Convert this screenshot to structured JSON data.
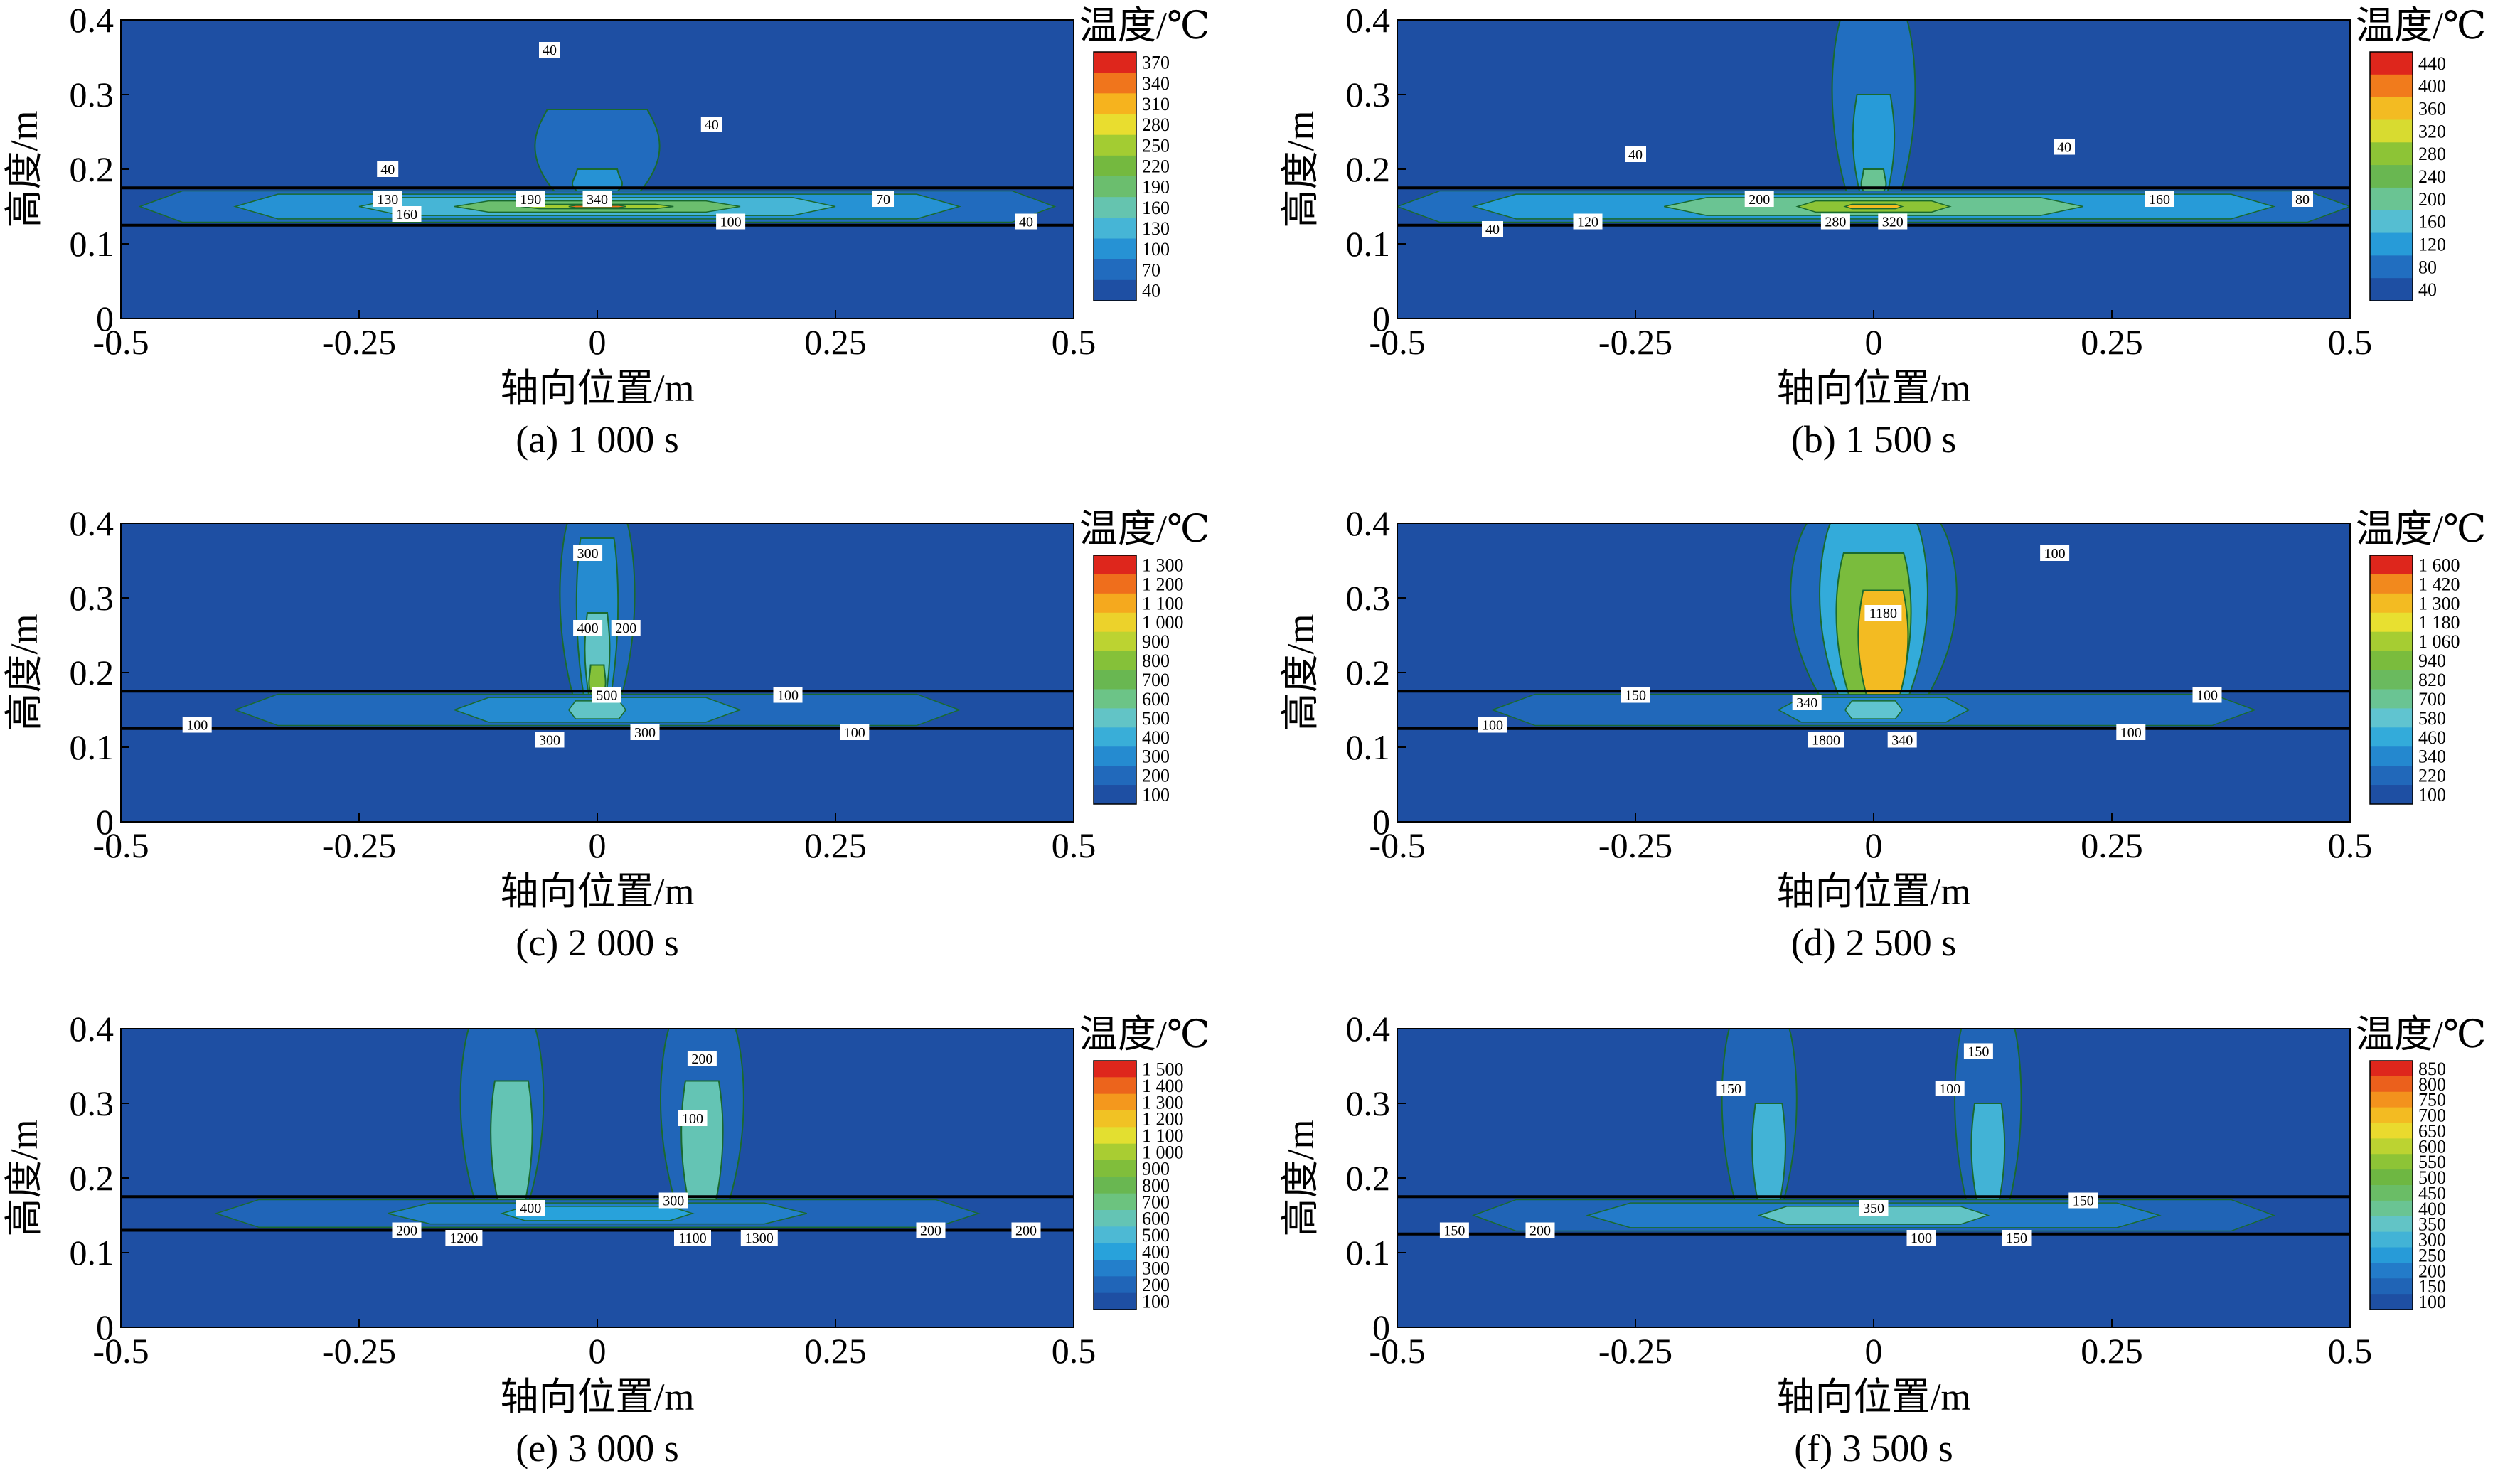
{
  "figure": {
    "y_axis_label": "高度/m",
    "x_axis_label": "轴向位置/m",
    "colorbar_title": "温度/℃",
    "colors": {
      "background_field": "#1e4fa3",
      "tube_line": "#000000",
      "contour_line": "#1a6a2e",
      "label_box": "#ffffff"
    }
  },
  "chart_data": [
    {
      "type": "heatmap",
      "panel": "a",
      "caption": "(a) 1 000 s",
      "xlabel": "轴向位置/m",
      "ylabel": "高度/m",
      "xlim": [
        -0.5,
        0.5
      ],
      "ylim": [
        0,
        0.4
      ],
      "x_ticks": [
        "-0.5",
        "-0.25",
        "0",
        "0.25",
        "0.5"
      ],
      "y_ticks": [
        "0",
        "0.1",
        "0.2",
        "0.3",
        "0.4"
      ],
      "tube_bounds_m": [
        0.125,
        0.175
      ],
      "colorbar_title": "温度/℃",
      "colorbar_levels": [
        "370",
        "340",
        "310",
        "280",
        "250",
        "220",
        "190",
        "160",
        "130",
        "100",
        "70",
        "40"
      ],
      "colorbar_values": [
        370,
        340,
        310,
        280,
        250,
        220,
        190,
        160,
        130,
        100,
        70,
        40
      ],
      "grid": false,
      "legend_position": "right",
      "strip_bands": [
        {
          "value": 70,
          "x": [
            -0.48,
            0.48
          ]
        },
        {
          "value": 100,
          "x": [
            -0.38,
            0.38
          ]
        },
        {
          "value": 130,
          "x": [
            -0.25,
            0.25
          ]
        },
        {
          "value": 190,
          "x": [
            -0.15,
            0.15
          ]
        },
        {
          "value": 250,
          "x": [
            -0.08,
            0.08
          ]
        },
        {
          "value": 340,
          "x": [
            -0.03,
            0.03
          ]
        }
      ],
      "plumes": [
        {
          "x": 0.0,
          "y_top": 0.28,
          "width": 0.15,
          "value": 70
        },
        {
          "x": 0.0,
          "y_top": 0.2,
          "width": 0.06,
          "value": 100
        }
      ],
      "contour_labels": [
        {
          "text": "40",
          "x": -0.22,
          "y": 0.2
        },
        {
          "text": "40",
          "x": -0.05,
          "y": 0.36
        },
        {
          "text": "40",
          "x": 0.12,
          "y": 0.26
        },
        {
          "text": "130",
          "x": -0.22,
          "y": 0.16
        },
        {
          "text": "190",
          "x": -0.07,
          "y": 0.16
        },
        {
          "text": "340",
          "x": 0.0,
          "y": 0.16
        },
        {
          "text": "70",
          "x": 0.3,
          "y": 0.16
        },
        {
          "text": "160",
          "x": -0.2,
          "y": 0.14
        },
        {
          "text": "100",
          "x": 0.14,
          "y": 0.13
        },
        {
          "text": "40",
          "x": 0.45,
          "y": 0.13
        }
      ]
    },
    {
      "type": "heatmap",
      "panel": "b",
      "caption": "(b) 1 500 s",
      "xlabel": "轴向位置/m",
      "ylabel": "高度/m",
      "xlim": [
        -0.5,
        0.5
      ],
      "ylim": [
        0,
        0.4
      ],
      "x_ticks": [
        "-0.5",
        "-0.25",
        "0",
        "0.25",
        "0.5"
      ],
      "y_ticks": [
        "0",
        "0.1",
        "0.2",
        "0.3",
        "0.4"
      ],
      "tube_bounds_m": [
        0.125,
        0.175
      ],
      "colorbar_title": "温度/℃",
      "colorbar_levels": [
        "440",
        "400",
        "360",
        "320",
        "280",
        "240",
        "200",
        "160",
        "120",
        "80",
        "40"
      ],
      "colorbar_values": [
        440,
        400,
        360,
        320,
        280,
        240,
        200,
        160,
        120,
        80,
        40
      ],
      "grid": false,
      "legend_position": "right",
      "strip_bands": [
        {
          "value": 80,
          "x": [
            -0.5,
            0.5
          ]
        },
        {
          "value": 120,
          "x": [
            -0.42,
            0.42
          ]
        },
        {
          "value": 200,
          "x": [
            -0.22,
            0.22
          ]
        },
        {
          "value": 280,
          "x": [
            -0.08,
            0.08
          ]
        },
        {
          "value": 360,
          "x": [
            -0.03,
            0.03
          ]
        }
      ],
      "plumes": [
        {
          "x": 0.0,
          "y_top": 0.4,
          "width": 0.1,
          "value": 80
        },
        {
          "x": 0.0,
          "y_top": 0.3,
          "width": 0.05,
          "value": 120
        },
        {
          "x": 0.0,
          "y_top": 0.2,
          "width": 0.03,
          "value": 200
        }
      ],
      "contour_labels": [
        {
          "text": "40",
          "x": -0.25,
          "y": 0.22
        },
        {
          "text": "40",
          "x": 0.2,
          "y": 0.23
        },
        {
          "text": "200",
          "x": -0.12,
          "y": 0.16
        },
        {
          "text": "280",
          "x": -0.04,
          "y": 0.13
        },
        {
          "text": "320",
          "x": 0.02,
          "y": 0.13
        },
        {
          "text": "120",
          "x": -0.3,
          "y": 0.13
        },
        {
          "text": "160",
          "x": 0.3,
          "y": 0.16
        },
        {
          "text": "40",
          "x": -0.4,
          "y": 0.12
        },
        {
          "text": "80",
          "x": 0.45,
          "y": 0.16
        }
      ]
    },
    {
      "type": "heatmap",
      "panel": "c",
      "caption": "(c) 2 000 s",
      "xlabel": "轴向位置/m",
      "ylabel": "高度/m",
      "xlim": [
        -0.5,
        0.5
      ],
      "ylim": [
        0,
        0.4
      ],
      "x_ticks": [
        "-0.5",
        "-0.25",
        "0",
        "0.25",
        "0.5"
      ],
      "y_ticks": [
        "0",
        "0.1",
        "0.2",
        "0.3",
        "0.4"
      ],
      "tube_bounds_m": [
        0.125,
        0.175
      ],
      "colorbar_title": "温度/℃",
      "colorbar_levels": [
        "1 300",
        "1 200",
        "1 100",
        "1 000",
        "900",
        "800",
        "700",
        "600",
        "500",
        "400",
        "300",
        "200",
        "100"
      ],
      "colorbar_values": [
        1300,
        1200,
        1100,
        1000,
        900,
        800,
        700,
        600,
        500,
        400,
        300,
        200,
        100
      ],
      "grid": false,
      "legend_position": "right",
      "strip_bands": [
        {
          "value": 200,
          "x": [
            -0.38,
            0.38
          ]
        },
        {
          "value": 300,
          "x": [
            -0.15,
            0.15
          ]
        },
        {
          "value": 500,
          "x": [
            -0.03,
            0.03
          ]
        }
      ],
      "plumes": [
        {
          "x": 0.0,
          "y_top": 0.4,
          "width": 0.09,
          "value": 200
        },
        {
          "x": 0.0,
          "y_top": 0.38,
          "width": 0.05,
          "value": 300
        },
        {
          "x": 0.0,
          "y_top": 0.28,
          "width": 0.03,
          "value": 500
        },
        {
          "x": 0.0,
          "y_top": 0.21,
          "width": 0.02,
          "value": 800
        }
      ],
      "contour_labels": [
        {
          "text": "300",
          "x": -0.01,
          "y": 0.36
        },
        {
          "text": "400",
          "x": -0.01,
          "y": 0.26
        },
        {
          "text": "200",
          "x": 0.03,
          "y": 0.26
        },
        {
          "text": "500",
          "x": 0.01,
          "y": 0.17
        },
        {
          "text": "300",
          "x": 0.05,
          "y": 0.12
        },
        {
          "text": "100",
          "x": 0.2,
          "y": 0.17
        },
        {
          "text": "100",
          "x": -0.42,
          "y": 0.13
        },
        {
          "text": "100",
          "x": 0.27,
          "y": 0.12
        },
        {
          "text": "300",
          "x": -0.05,
          "y": 0.11
        }
      ]
    },
    {
      "type": "heatmap",
      "panel": "d",
      "caption": "(d) 2 500 s",
      "xlabel": "轴向位置/m",
      "ylabel": "高度/m",
      "xlim": [
        -0.5,
        0.5
      ],
      "ylim": [
        0,
        0.4
      ],
      "x_ticks": [
        "-0.5",
        "-0.25",
        "0",
        "0.25",
        "0.5"
      ],
      "y_ticks": [
        "0",
        "0.1",
        "0.2",
        "0.3",
        "0.4"
      ],
      "tube_bounds_m": [
        0.125,
        0.175
      ],
      "colorbar_title": "温度/℃",
      "colorbar_levels": [
        "1 600",
        "1 420",
        "1 300",
        "1 180",
        "1 060",
        "940",
        "820",
        "700",
        "580",
        "460",
        "340",
        "220",
        "100"
      ],
      "colorbar_values": [
        1600,
        1420,
        1300,
        1180,
        1060,
        940,
        820,
        700,
        580,
        460,
        340,
        220,
        100
      ],
      "grid": false,
      "legend_position": "right",
      "strip_bands": [
        {
          "value": 220,
          "x": [
            -0.4,
            0.4
          ]
        },
        {
          "value": 340,
          "x": [
            -0.1,
            0.1
          ]
        },
        {
          "value": 580,
          "x": [
            -0.03,
            0.03
          ]
        }
      ],
      "plumes": [
        {
          "x": 0.0,
          "y_top": 0.4,
          "width": 0.2,
          "value": 220
        },
        {
          "x": 0.0,
          "y_top": 0.4,
          "width": 0.13,
          "value": 460
        },
        {
          "x": 0.0,
          "y_top": 0.36,
          "width": 0.09,
          "value": 940
        },
        {
          "x": 0.01,
          "y_top": 0.31,
          "width": 0.06,
          "value": 1300
        }
      ],
      "contour_labels": [
        {
          "text": "100",
          "x": 0.19,
          "y": 0.36
        },
        {
          "text": "340",
          "x": -0.07,
          "y": 0.16
        },
        {
          "text": "150",
          "x": -0.25,
          "y": 0.17
        },
        {
          "text": "100",
          "x": 0.35,
          "y": 0.17
        },
        {
          "text": "100",
          "x": -0.4,
          "y": 0.13
        },
        {
          "text": "100",
          "x": 0.27,
          "y": 0.12
        },
        {
          "text": "1800",
          "x": -0.05,
          "y": 0.11
        },
        {
          "text": "340",
          "x": 0.03,
          "y": 0.11
        },
        {
          "text": "1180",
          "x": 0.01,
          "y": 0.28
        }
      ]
    },
    {
      "type": "heatmap",
      "panel": "e",
      "caption": "(e) 3 000 s",
      "xlabel": "轴向位置/m",
      "ylabel": "高度/m",
      "xlim": [
        -0.5,
        0.5
      ],
      "ylim": [
        0,
        0.4
      ],
      "x_ticks": [
        "-0.5",
        "-0.25",
        "0",
        "0.25",
        "0.5"
      ],
      "y_ticks": [
        "0",
        "0.1",
        "0.2",
        "0.3",
        "0.4"
      ],
      "tube_bounds_m": [
        0.13,
        0.175
      ],
      "colorbar_title": "温度/℃",
      "colorbar_levels": [
        "1 500",
        "1 400",
        "1 300",
        "1 200",
        "1 100",
        "1 000",
        "900",
        "800",
        "700",
        "600",
        "500",
        "400",
        "300",
        "200",
        "100"
      ],
      "colorbar_values": [
        1500,
        1400,
        1300,
        1200,
        1100,
        1000,
        900,
        800,
        700,
        600,
        500,
        400,
        300,
        200,
        100
      ],
      "grid": false,
      "legend_position": "right",
      "strip_bands": [
        {
          "value": 200,
          "x": [
            -0.4,
            0.4
          ]
        },
        {
          "value": 300,
          "x": [
            -0.22,
            0.22
          ]
        },
        {
          "value": 400,
          "x": [
            -0.1,
            0.1
          ]
        }
      ],
      "plumes": [
        {
          "x": -0.1,
          "y_top": 0.4,
          "width": 0.1,
          "value": 200
        },
        {
          "x": -0.09,
          "y_top": 0.33,
          "width": 0.05,
          "value": 600
        },
        {
          "x": 0.11,
          "y_top": 0.4,
          "width": 0.1,
          "value": 200
        },
        {
          "x": 0.11,
          "y_top": 0.33,
          "width": 0.05,
          "value": 600
        }
      ],
      "contour_labels": [
        {
          "text": "200",
          "x": -0.2,
          "y": 0.13
        },
        {
          "text": "200",
          "x": 0.45,
          "y": 0.13
        },
        {
          "text": "300",
          "x": 0.08,
          "y": 0.17
        },
        {
          "text": "200",
          "x": 0.35,
          "y": 0.13
        },
        {
          "text": "400",
          "x": -0.07,
          "y": 0.16
        },
        {
          "text": "1200",
          "x": -0.14,
          "y": 0.12
        },
        {
          "text": "1100",
          "x": 0.1,
          "y": 0.12
        },
        {
          "text": "1300",
          "x": 0.17,
          "y": 0.12
        },
        {
          "text": "100",
          "x": 0.1,
          "y": 0.28
        },
        {
          "text": "200",
          "x": 0.11,
          "y": 0.36
        }
      ]
    },
    {
      "type": "heatmap",
      "panel": "f",
      "caption": "(f) 3 500 s",
      "xlabel": "轴向位置/m",
      "ylabel": "高度/m",
      "xlim": [
        -0.5,
        0.5
      ],
      "ylim": [
        0,
        0.4
      ],
      "x_ticks": [
        "-0.5",
        "-0.25",
        "0",
        "0.25",
        "0.5"
      ],
      "y_ticks": [
        "0",
        "0.1",
        "0.2",
        "0.3",
        "0.4"
      ],
      "tube_bounds_m": [
        0.125,
        0.175
      ],
      "colorbar_title": "温度/℃",
      "colorbar_levels": [
        "850",
        "800",
        "750",
        "700",
        "650",
        "600",
        "550",
        "500",
        "450",
        "400",
        "350",
        "300",
        "250",
        "200",
        "150",
        "100"
      ],
      "colorbar_values": [
        850,
        800,
        750,
        700,
        650,
        600,
        550,
        500,
        450,
        400,
        350,
        300,
        250,
        200,
        150,
        100
      ],
      "grid": false,
      "legend_position": "right",
      "strip_bands": [
        {
          "value": 150,
          "x": [
            -0.42,
            0.42
          ]
        },
        {
          "value": 200,
          "x": [
            -0.3,
            0.3
          ]
        },
        {
          "value": 350,
          "x": [
            -0.12,
            0.12
          ]
        }
      ],
      "plumes": [
        {
          "x": -0.12,
          "y_top": 0.4,
          "width": 0.09,
          "value": 150
        },
        {
          "x": -0.11,
          "y_top": 0.3,
          "width": 0.04,
          "value": 300
        },
        {
          "x": 0.12,
          "y_top": 0.4,
          "width": 0.08,
          "value": 150
        },
        {
          "x": 0.12,
          "y_top": 0.3,
          "width": 0.04,
          "value": 300
        }
      ],
      "contour_labels": [
        {
          "text": "150",
          "x": -0.44,
          "y": 0.13
        },
        {
          "text": "200",
          "x": -0.35,
          "y": 0.13
        },
        {
          "text": "350",
          "x": 0.0,
          "y": 0.16
        },
        {
          "text": "150",
          "x": 0.22,
          "y": 0.17
        },
        {
          "text": "100",
          "x": 0.05,
          "y": 0.12
        },
        {
          "text": "150",
          "x": 0.15,
          "y": 0.12
        },
        {
          "text": "150",
          "x": -0.15,
          "y": 0.32
        },
        {
          "text": "100",
          "x": 0.08,
          "y": 0.32
        },
        {
          "text": "150",
          "x": 0.11,
          "y": 0.37
        }
      ]
    }
  ]
}
